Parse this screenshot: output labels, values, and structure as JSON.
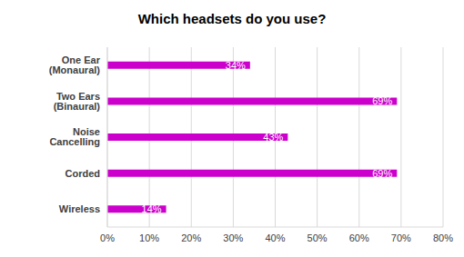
{
  "chart_data": {
    "type": "bar",
    "title": "Which headsets do you use?",
    "orientation": "horizontal",
    "categories": [
      "One Ear (Monaural)",
      "Two Ears (Binaural)",
      "Noise Cancelling",
      "Corded",
      "Wireless"
    ],
    "values": [
      34,
      69,
      43,
      69,
      14
    ],
    "value_labels": [
      "34%",
      "69%",
      "43%",
      "69%",
      "14%"
    ],
    "color": "#cc00cc",
    "data_labels": true,
    "grid": true,
    "xlim": [
      0,
      80
    ],
    "xticks": [
      {
        "value": 0,
        "label": "0%"
      },
      {
        "value": 10,
        "label": "10%"
      },
      {
        "value": 20,
        "label": "20%"
      },
      {
        "value": 30,
        "label": "30%"
      },
      {
        "value": 40,
        "label": "40%"
      },
      {
        "value": 50,
        "label": "50%"
      },
      {
        "value": 60,
        "label": "60%"
      },
      {
        "value": 70,
        "label": "70%"
      },
      {
        "value": 80,
        "label": "80%"
      }
    ]
  }
}
